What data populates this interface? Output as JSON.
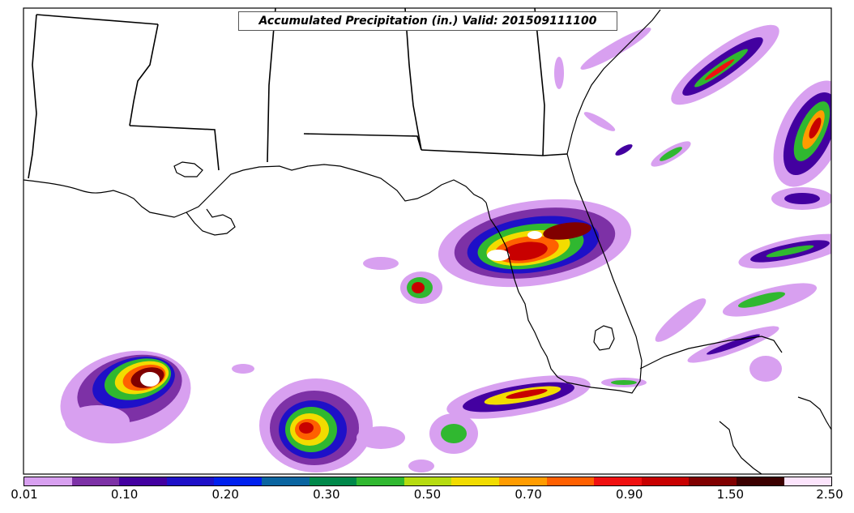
{
  "map": {
    "title": "Accumulated Precipitation (in.) Valid: 201509111100"
  },
  "colorbar": {
    "colors": [
      "#d8a0f0",
      "#7d31a6",
      "#4300a0",
      "#1e10c8",
      "#0020ee",
      "#0a64a0",
      "#00884a",
      "#30b830",
      "#b6dc10",
      "#f2dc00",
      "#ff9c00",
      "#ff6000",
      "#f01010",
      "#c80000",
      "#800000",
      "#3c0000",
      "#fce4fc"
    ],
    "tick_labels": [
      "0.01",
      "0.10",
      "0.20",
      "0.30",
      "0.50",
      "0.70",
      "0.90",
      "1.50",
      "2.50"
    ]
  }
}
